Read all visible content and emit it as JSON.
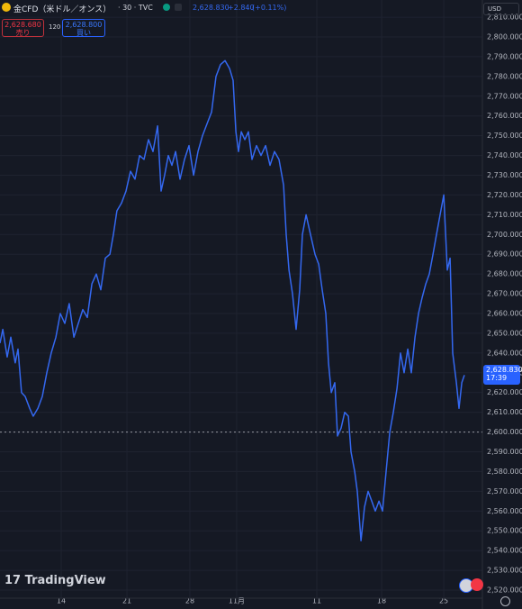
{
  "header": {
    "symbol": "金CFD（米ドル／オンス）",
    "meta": "· 30 · TVC",
    "last": "2,628.830",
    "change": "+2.840",
    "change_pct": "(+0.11%)",
    "sell_price": "2,628.680",
    "sell_label": "売り",
    "spread": "120",
    "buy_price": "2,628.800",
    "buy_label": "買い",
    "currency": "USD"
  },
  "price_badge": {
    "price": "2,628.830",
    "time": "17:39"
  },
  "logo": "TradingView",
  "chart_data": {
    "type": "line",
    "color": "#3468f0",
    "grid": true,
    "dashed_line": 2600,
    "x": [
      0,
      0.21,
      0.55,
      0.82,
      1.16,
      1.37,
      1.64,
      1.92,
      2.26,
      2.53,
      2.88,
      3.22,
      3.56,
      3.9,
      4.25,
      4.59,
      4.93,
      5.27,
      5.62,
      5.96,
      6.3,
      6.64,
      6.99,
      7.33,
      7.67,
      8.01,
      8.36,
      8.63,
      8.9,
      9.25,
      9.59,
      9.93,
      10.27,
      10.62,
      10.96,
      11.3,
      11.64,
      11.99,
      12.26,
      12.53,
      12.81,
      13.08,
      13.36,
      13.7,
      14.04,
      14.38,
      14.73,
      15.07,
      15.41,
      15.75,
      16.1,
      16.44,
      16.78,
      17.12,
      17.47,
      17.74,
      17.95,
      18.15,
      18.36,
      18.63,
      18.9,
      19.18,
      19.52,
      19.86,
      20.21,
      20.55,
      20.89,
      21.23,
      21.58,
      21.78,
      21.99,
      22.26,
      22.53,
      22.81,
      23.01,
      23.29,
      23.63,
      23.97,
      24.25,
      24.52,
      24.79,
      25.0,
      25.21,
      25.48,
      25.68,
      25.96,
      26.23,
      26.51,
      26.71,
      26.99,
      27.19,
      27.47,
      27.74,
      28.01,
      28.29,
      28.56,
      28.84,
      29.11,
      29.38,
      29.66,
      29.93,
      30.21,
      30.48,
      30.75,
      31.03,
      31.3,
      31.58,
      31.85,
      32.12,
      32.4,
      32.67,
      32.95,
      33.22,
      33.49,
      33.77,
      34.04,
      34.25,
      34.45,
      34.73,
      34.93,
      35.14,
      35.34
    ],
    "values": [
      2645,
      2652,
      2638,
      2648,
      2635,
      2642,
      2620,
      2618,
      2612,
      2608,
      2612,
      2618,
      2630,
      2640,
      2648,
      2660,
      2655,
      2665,
      2648,
      2655,
      2662,
      2658,
      2675,
      2680,
      2672,
      2688,
      2690,
      2700,
      2712,
      2716,
      2722,
      2732,
      2728,
      2740,
      2738,
      2748,
      2742,
      2755,
      2722,
      2730,
      2740,
      2735,
      2742,
      2728,
      2738,
      2745,
      2730,
      2742,
      2750,
      2756,
      2762,
      2780,
      2786,
      2788,
      2784,
      2778,
      2752,
      2742,
      2752,
      2748,
      2752,
      2738,
      2745,
      2740,
      2745,
      2735,
      2742,
      2738,
      2725,
      2700,
      2682,
      2670,
      2652,
      2672,
      2700,
      2710,
      2700,
      2690,
      2685,
      2672,
      2660,
      2635,
      2620,
      2625,
      2598,
      2602,
      2610,
      2608,
      2590,
      2580,
      2570,
      2545,
      2562,
      2570,
      2565,
      2560,
      2565,
      2560,
      2580,
      2600,
      2610,
      2622,
      2640,
      2630,
      2642,
      2630,
      2648,
      2660,
      2668,
      2675,
      2680,
      2690,
      2700,
      2710,
      2720,
      2682,
      2688,
      2640,
      2625,
      2612,
      2625,
      2628.83
    ],
    "xlim": [
      0,
      36.71
    ],
    "xticks": [
      {
        "value": 4.66,
        "label": "14"
      },
      {
        "value": 9.66,
        "label": "21"
      },
      {
        "value": 14.45,
        "label": "28"
      },
      {
        "value": 18.01,
        "label": "11月"
      },
      {
        "value": 24.11,
        "label": "11"
      },
      {
        "value": 29.04,
        "label": "18"
      },
      {
        "value": 33.77,
        "label": "25"
      }
    ],
    "ylim": [
      2515.9,
      2818.7
    ],
    "yticks": [
      {
        "value": 2520,
        "label": "2,520.000"
      },
      {
        "value": 2530,
        "label": "2,530.000"
      },
      {
        "value": 2540,
        "label": "2,540.000"
      },
      {
        "value": 2550,
        "label": "2,550.000"
      },
      {
        "value": 2560,
        "label": "2,560.000"
      },
      {
        "value": 2570,
        "label": "2,570.000"
      },
      {
        "value": 2580,
        "label": "2,580.000"
      },
      {
        "value": 2590,
        "label": "2,590.000"
      },
      {
        "value": 2600,
        "label": "2,600.000"
      },
      {
        "value": 2610,
        "label": "2,610.000"
      },
      {
        "value": 2620,
        "label": "2,620.000"
      },
      {
        "value": 2630,
        "label": "2,630.000"
      },
      {
        "value": 2640,
        "label": "2,640.000"
      },
      {
        "value": 2650,
        "label": "2,650.000"
      },
      {
        "value": 2660,
        "label": "2,660.000"
      },
      {
        "value": 2670,
        "label": "2,670.000"
      },
      {
        "value": 2680,
        "label": "2,680.000"
      },
      {
        "value": 2690,
        "label": "2,690.000"
      },
      {
        "value": 2700,
        "label": "2,700.000"
      },
      {
        "value": 2710,
        "label": "2,710.000"
      },
      {
        "value": 2720,
        "label": "2,720.000"
      },
      {
        "value": 2730,
        "label": "2,730.000"
      },
      {
        "value": 2740,
        "label": "2,740.000"
      },
      {
        "value": 2750,
        "label": "2,750.000"
      },
      {
        "value": 2760,
        "label": "2,760.000"
      },
      {
        "value": 2770,
        "label": "2,770.000"
      },
      {
        "value": 2780,
        "label": "2,780.000"
      },
      {
        "value": 2790,
        "label": "2,790.000"
      },
      {
        "value": 2800,
        "label": "2,800.000"
      },
      {
        "value": 2810,
        "label": "2,810.000"
      }
    ]
  }
}
